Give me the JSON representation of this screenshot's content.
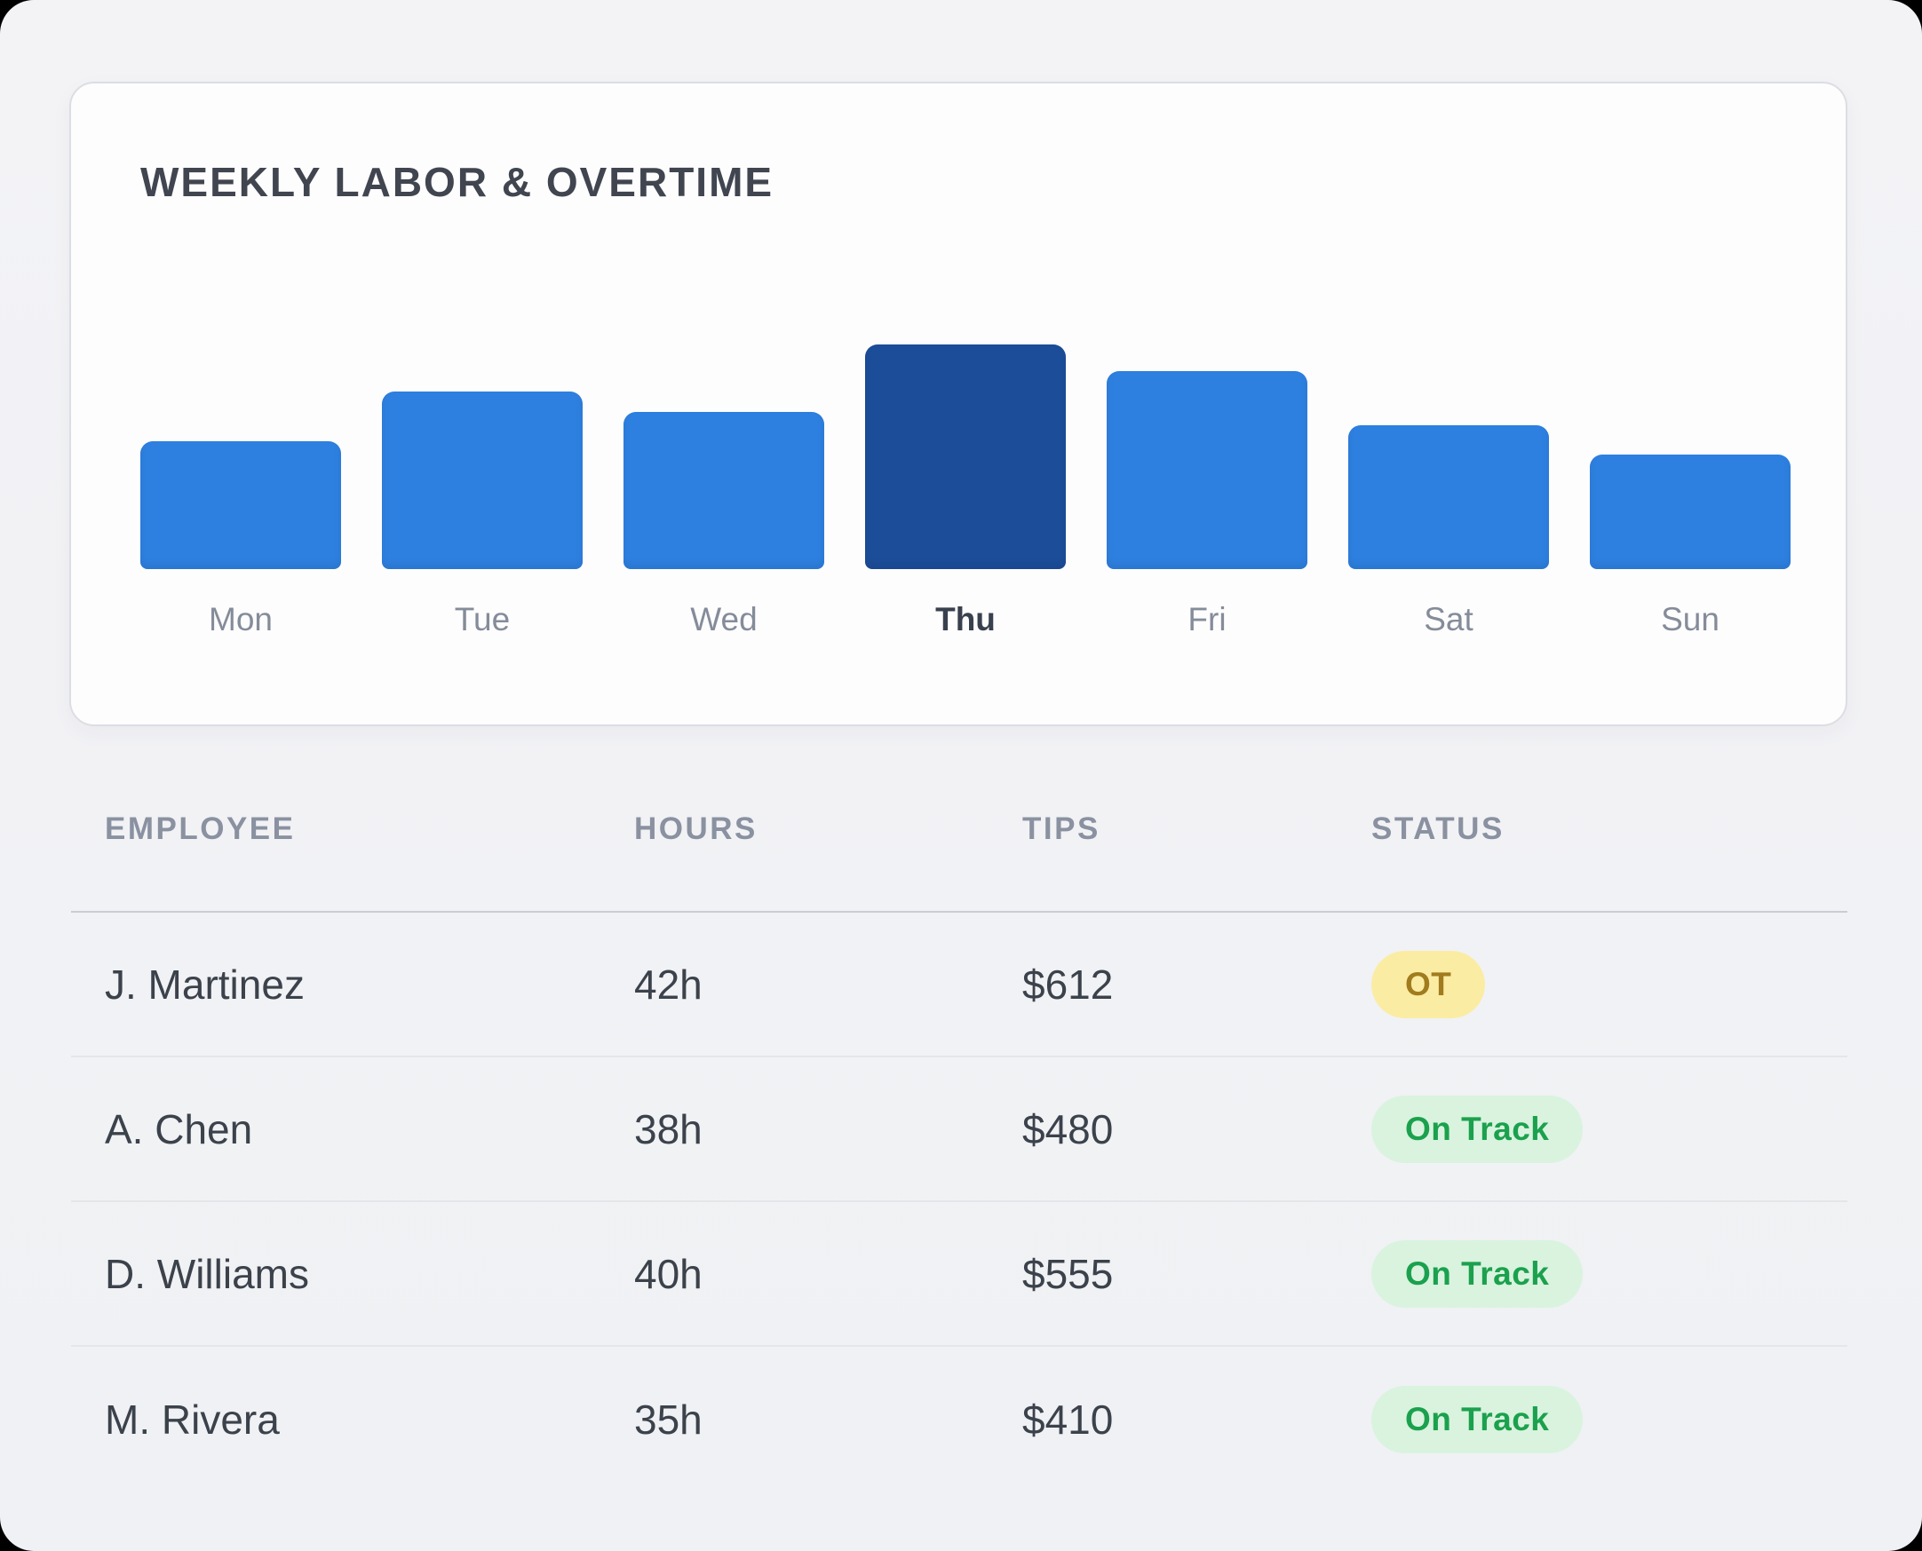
{
  "card": {
    "title": "WEEKLY LABOR & OVERTIME"
  },
  "chart_data": {
    "type": "bar",
    "title": "WEEKLY LABOR & OVERTIME",
    "categories": [
      "Mon",
      "Tue",
      "Wed",
      "Thu",
      "Fri",
      "Sat",
      "Sun"
    ],
    "values": [
      57,
      79,
      70,
      100,
      88,
      64,
      51
    ],
    "value_note": "relative bar height, percent of tallest bar (no y-axis ticks shown)",
    "xlabel": "",
    "ylabel": "",
    "ylim": [
      0,
      100
    ],
    "grid": false,
    "legend": false,
    "highlight_category": "Thu",
    "bar_color": "#2E80E0",
    "highlight_color": "#1C4D99"
  },
  "table": {
    "columns": [
      "EMPLOYEE",
      "HOURS",
      "TIPS",
      "STATUS"
    ],
    "rows": [
      {
        "employee": "J. Martinez",
        "hours": "42h",
        "tips": "$612",
        "status": "OT",
        "status_type": "warning"
      },
      {
        "employee": "A. Chen",
        "hours": "38h",
        "tips": "$480",
        "status": "On Track",
        "status_type": "success"
      },
      {
        "employee": "D. Williams",
        "hours": "40h",
        "tips": "$555",
        "status": "On Track",
        "status_type": "success"
      },
      {
        "employee": "M. Rivera",
        "hours": "35h",
        "tips": "$410",
        "status": "On Track",
        "status_type": "success"
      }
    ]
  },
  "colors": {
    "page_background": "#F1F2F4",
    "card_background": "#FDFDFE",
    "card_border": "#DBDEE3",
    "title_text": "#40454F",
    "axis_label_text": "#858C99",
    "axis_label_highlight_text": "#39414E",
    "table_header_text": "#8A91A0",
    "table_cell_text": "#3B424B",
    "badge_warning_bg": "#FBECA4",
    "badge_warning_text": "#A07C1E",
    "badge_success_bg": "#D9F3DF",
    "badge_success_text": "#1BA14D"
  }
}
